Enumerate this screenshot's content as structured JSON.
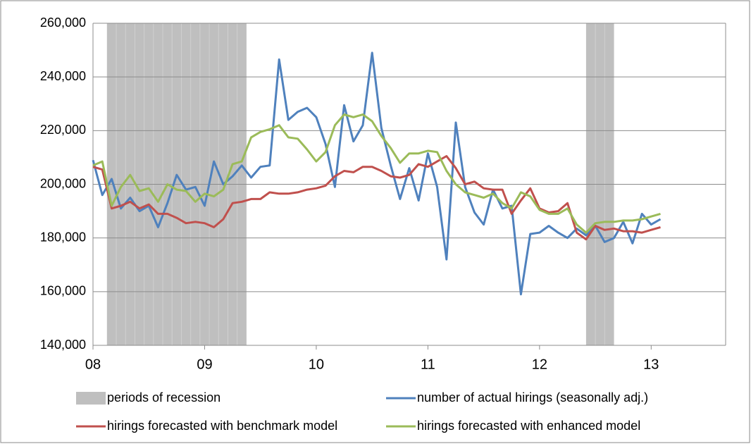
{
  "chart_data": {
    "type": "line",
    "x": [
      2008,
      2008.083,
      2008.167,
      2008.25,
      2008.333,
      2008.417,
      2008.5,
      2008.583,
      2008.667,
      2008.75,
      2008.833,
      2008.917,
      2009,
      2009.083,
      2009.167,
      2009.25,
      2009.333,
      2009.417,
      2009.5,
      2009.583,
      2009.667,
      2009.75,
      2009.833,
      2009.917,
      2010,
      2010.083,
      2010.167,
      2010.25,
      2010.333,
      2010.417,
      2010.5,
      2010.583,
      2010.667,
      2010.75,
      2010.833,
      2010.917,
      2011,
      2011.083,
      2011.167,
      2011.25,
      2011.333,
      2011.417,
      2011.5,
      2011.583,
      2011.667,
      2011.75,
      2011.833,
      2011.917,
      2012,
      2012.083,
      2012.167,
      2012.25,
      2012.333,
      2012.417,
      2012.5,
      2012.583,
      2012.667,
      2012.75,
      2012.833,
      2012.917,
      2013,
      2013.083
    ],
    "recession": {
      "name": "periods of recession",
      "color": "#bfbfbf",
      "periods": [
        [
          2008.125,
          2009.375
        ],
        [
          2012.417,
          2012.667
        ]
      ]
    },
    "series": [
      {
        "name": "number of actual hirings (seasonally adj.)",
        "color": "#4f81bd",
        "values": [
          209000,
          196000,
          202000,
          191000,
          195000,
          190000,
          192000,
          184000,
          193000,
          203500,
          198000,
          199000,
          192000,
          208500,
          200000,
          203000,
          207000,
          202500,
          206500,
          207000,
          246500,
          224000,
          227000,
          228500,
          225000,
          215000,
          199000,
          229500,
          216000,
          222000,
          249000,
          221000,
          207000,
          194500,
          206000,
          194000,
          211500,
          199000,
          172000,
          223000,
          199000,
          189500,
          185000,
          198000,
          191000,
          192000,
          159000,
          181500,
          182000,
          184500,
          182000,
          180000,
          183500,
          181000,
          184500,
          178500,
          180000,
          186000,
          178000,
          189000,
          185000,
          187000
        ]
      },
      {
        "name": "hirings forecasted with benchmark model",
        "color": "#c0504d",
        "values": [
          206500,
          205500,
          191000,
          192000,
          193500,
          191000,
          192500,
          189000,
          189000,
          187500,
          185500,
          186000,
          185500,
          184000,
          187000,
          193000,
          193500,
          194500,
          194500,
          197000,
          196500,
          196500,
          197000,
          198000,
          198500,
          199500,
          203000,
          205000,
          204500,
          206500,
          206500,
          205000,
          203000,
          202500,
          203500,
          207500,
          206500,
          208500,
          210500,
          206000,
          200000,
          201000,
          198500,
          198000,
          198000,
          189000,
          194000,
          198500,
          191000,
          189500,
          190000,
          193000,
          182000,
          179500,
          184500,
          183000,
          183500,
          182500,
          182500,
          182000,
          183000,
          184000
        ]
      },
      {
        "name": "hirings forecasted with enhanced model",
        "color": "#9bbb59",
        "values": [
          207000,
          208500,
          192000,
          199000,
          203500,
          197500,
          198500,
          193500,
          200000,
          198000,
          197500,
          193500,
          196500,
          195500,
          198000,
          207500,
          208500,
          217500,
          219500,
          220500,
          222000,
          217500,
          217000,
          213000,
          208500,
          212000,
          222000,
          226000,
          225000,
          226000,
          223500,
          218000,
          213500,
          208000,
          211500,
          211500,
          212500,
          212000,
          205000,
          200000,
          197000,
          196000,
          195000,
          196500,
          193000,
          191000,
          197000,
          195500,
          190500,
          189000,
          189000,
          191000,
          185000,
          182000,
          185500,
          186000,
          186000,
          186500,
          186500,
          187000,
          188000,
          189000
        ]
      }
    ],
    "xlim": [
      2008,
      2013.667
    ],
    "xticks": [
      {
        "value": 2008,
        "label": "08"
      },
      {
        "value": 2009,
        "label": "09"
      },
      {
        "value": 2010,
        "label": "10"
      },
      {
        "value": 2011,
        "label": "11"
      },
      {
        "value": 2012,
        "label": "12"
      },
      {
        "value": 2013,
        "label": "13"
      }
    ],
    "ylim": [
      140000,
      260000
    ],
    "yticks": [
      {
        "value": 140000,
        "label": "140,000"
      },
      {
        "value": 160000,
        "label": "160,000"
      },
      {
        "value": 180000,
        "label": "180,000"
      },
      {
        "value": 200000,
        "label": "200,000"
      },
      {
        "value": 220000,
        "label": "220,000"
      },
      {
        "value": 240000,
        "label": "240,000"
      },
      {
        "value": 260000,
        "label": "260,000"
      }
    ],
    "grid": true
  }
}
